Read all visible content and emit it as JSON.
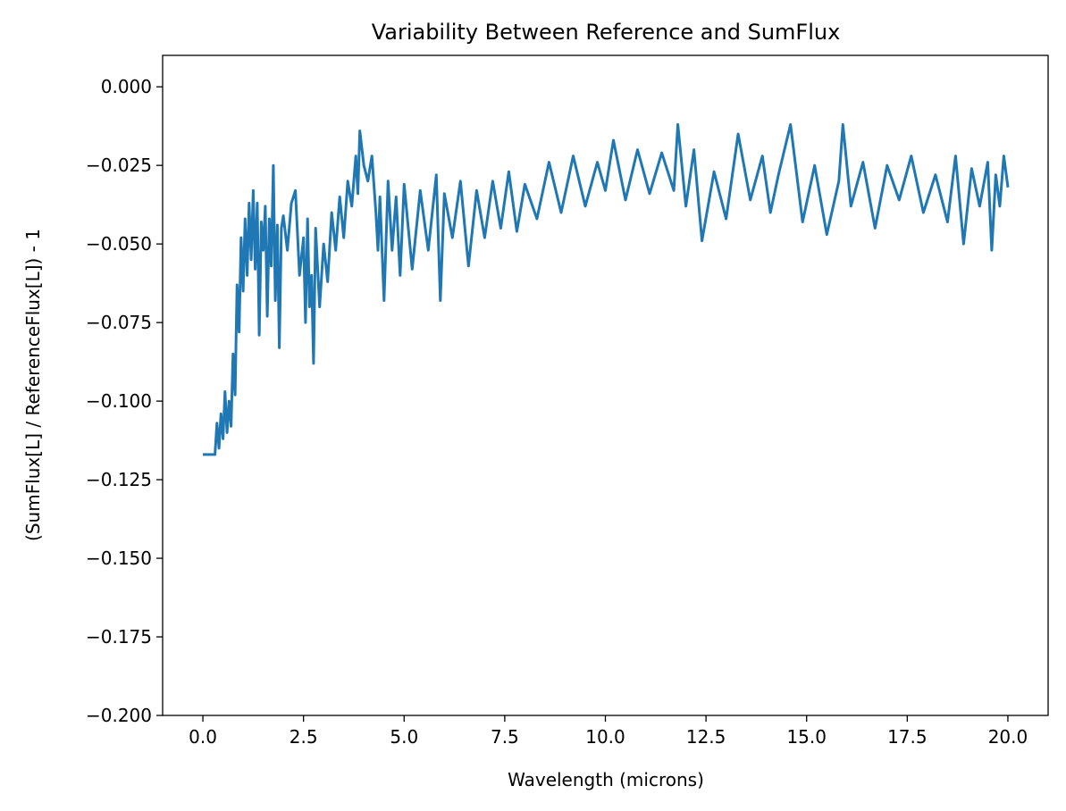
{
  "chart_data": {
    "type": "line",
    "title": "Variability Between Reference and SumFlux",
    "xlabel": "Wavelength (microns)",
    "ylabel": "(SumFlux[L] / ReferenceFlux[L]) - 1",
    "xlim": [
      -1.0,
      21.0
    ],
    "ylim": [
      -0.2,
      0.01
    ],
    "xticks": [
      0.0,
      2.5,
      5.0,
      7.5,
      10.0,
      12.5,
      15.0,
      17.5,
      20.0
    ],
    "xtick_labels": [
      "0.0",
      "2.5",
      "5.0",
      "7.5",
      "10.0",
      "12.5",
      "15.0",
      "17.5",
      "20.0"
    ],
    "yticks": [
      0.0,
      -0.025,
      -0.05,
      -0.075,
      -0.1,
      -0.125,
      -0.15,
      -0.175,
      -0.2
    ],
    "ytick_labels": [
      "0.000",
      "−0.025",
      "−0.050",
      "−0.075",
      "−0.100",
      "−0.125",
      "−0.150",
      "−0.175",
      "−0.200"
    ],
    "grid": false,
    "legend": "none",
    "series": [
      {
        "color": "#1f77b4",
        "x": [
          0.0,
          0.15,
          0.3,
          0.35,
          0.4,
          0.45,
          0.5,
          0.55,
          0.6,
          0.65,
          0.7,
          0.75,
          0.8,
          0.85,
          0.9,
          0.95,
          1.0,
          1.05,
          1.1,
          1.15,
          1.2,
          1.25,
          1.3,
          1.35,
          1.4,
          1.45,
          1.5,
          1.55,
          1.6,
          1.65,
          1.7,
          1.75,
          1.8,
          1.85,
          1.9,
          1.95,
          2.0,
          2.1,
          2.2,
          2.3,
          2.4,
          2.5,
          2.55,
          2.6,
          2.65,
          2.7,
          2.75,
          2.8,
          2.9,
          3.0,
          3.1,
          3.2,
          3.3,
          3.4,
          3.5,
          3.6,
          3.7,
          3.8,
          3.85,
          3.9,
          4.0,
          4.1,
          4.2,
          4.3,
          4.35,
          4.4,
          4.5,
          4.6,
          4.7,
          4.8,
          4.9,
          5.0,
          5.2,
          5.4,
          5.6,
          5.8,
          5.9,
          6.0,
          6.2,
          6.4,
          6.6,
          6.8,
          7.0,
          7.2,
          7.4,
          7.6,
          7.8,
          8.0,
          8.3,
          8.6,
          8.9,
          9.2,
          9.5,
          9.8,
          10.0,
          10.2,
          10.5,
          10.8,
          11.1,
          11.4,
          11.7,
          11.8,
          12.0,
          12.2,
          12.4,
          12.7,
          13.0,
          13.3,
          13.6,
          13.9,
          14.1,
          14.3,
          14.6,
          14.9,
          15.2,
          15.5,
          15.8,
          15.9,
          16.1,
          16.4,
          16.7,
          17.0,
          17.3,
          17.6,
          17.9,
          18.2,
          18.5,
          18.7,
          18.9,
          19.1,
          19.3,
          19.5,
          19.6,
          19.7,
          19.8,
          19.9,
          20.0
        ],
        "y": [
          -0.117,
          -0.117,
          -0.117,
          -0.107,
          -0.115,
          -0.104,
          -0.112,
          -0.097,
          -0.11,
          -0.1,
          -0.108,
          -0.085,
          -0.098,
          -0.063,
          -0.078,
          -0.048,
          -0.065,
          -0.042,
          -0.06,
          -0.037,
          -0.055,
          -0.033,
          -0.058,
          -0.037,
          -0.079,
          -0.043,
          -0.052,
          -0.038,
          -0.073,
          -0.042,
          -0.057,
          -0.025,
          -0.068,
          -0.044,
          -0.083,
          -0.045,
          -0.041,
          -0.052,
          -0.037,
          -0.033,
          -0.06,
          -0.048,
          -0.075,
          -0.042,
          -0.07,
          -0.06,
          -0.088,
          -0.045,
          -0.07,
          -0.05,
          -0.062,
          -0.04,
          -0.052,
          -0.035,
          -0.048,
          -0.03,
          -0.038,
          -0.022,
          -0.034,
          -0.014,
          -0.025,
          -0.03,
          -0.022,
          -0.04,
          -0.052,
          -0.035,
          -0.068,
          -0.03,
          -0.052,
          -0.035,
          -0.06,
          -0.031,
          -0.058,
          -0.033,
          -0.052,
          -0.028,
          -0.068,
          -0.034,
          -0.048,
          -0.03,
          -0.057,
          -0.033,
          -0.048,
          -0.03,
          -0.045,
          -0.027,
          -0.046,
          -0.031,
          -0.042,
          -0.024,
          -0.04,
          -0.022,
          -0.038,
          -0.024,
          -0.033,
          -0.017,
          -0.036,
          -0.02,
          -0.034,
          -0.021,
          -0.033,
          -0.012,
          -0.038,
          -0.02,
          -0.049,
          -0.027,
          -0.042,
          -0.015,
          -0.036,
          -0.022,
          -0.04,
          -0.028,
          -0.012,
          -0.043,
          -0.025,
          -0.047,
          -0.03,
          -0.012,
          -0.038,
          -0.024,
          -0.045,
          -0.025,
          -0.036,
          -0.022,
          -0.04,
          -0.028,
          -0.043,
          -0.022,
          -0.05,
          -0.026,
          -0.038,
          -0.024,
          -0.052,
          -0.028,
          -0.038,
          -0.022,
          -0.032
        ]
      }
    ]
  }
}
